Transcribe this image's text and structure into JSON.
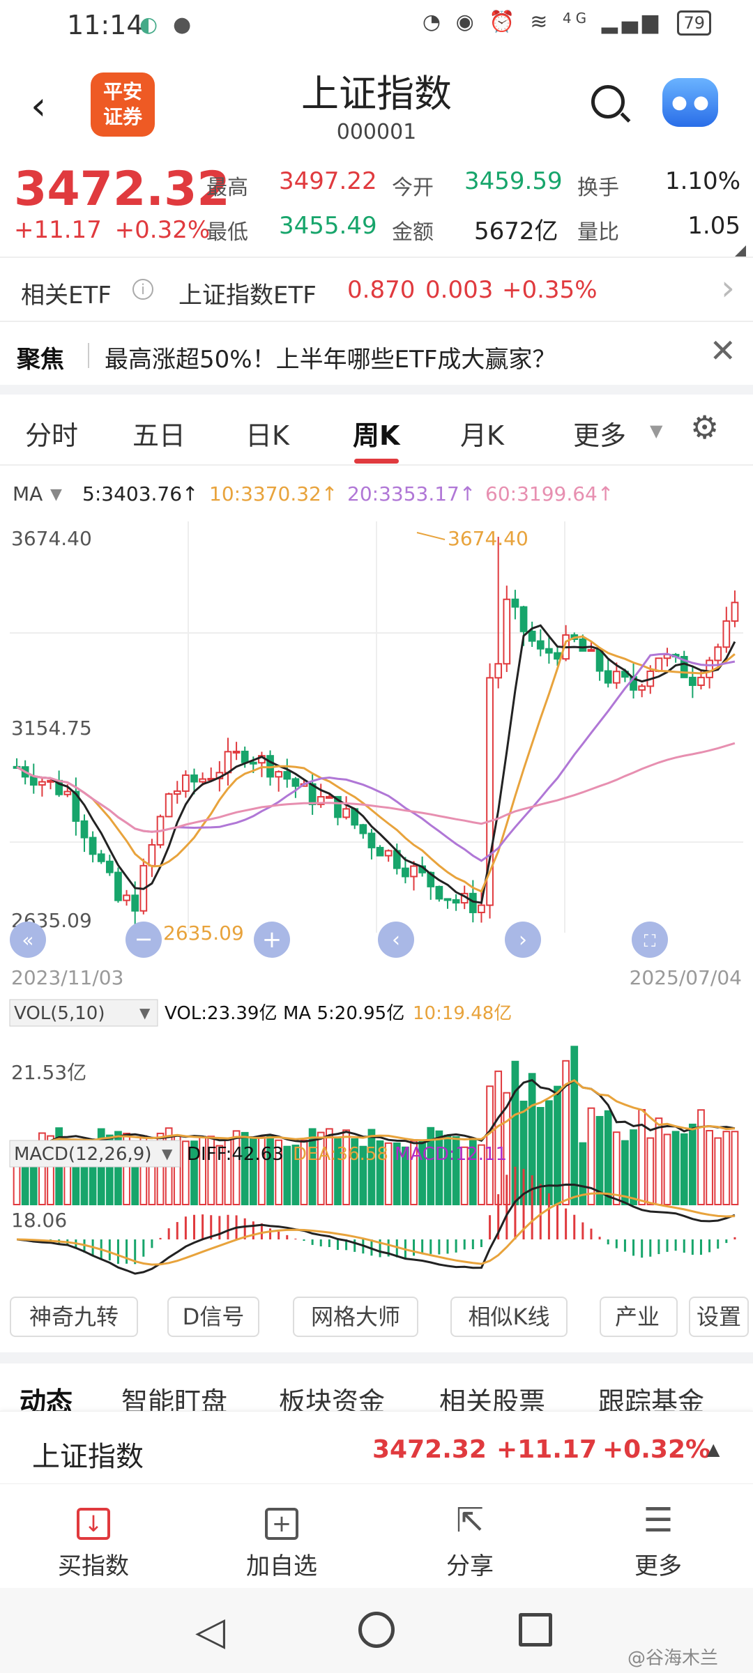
{
  "status_bar": {
    "time": "11:14",
    "battery": "79",
    "network": "4G"
  },
  "header": {
    "logo_text": "平安证券",
    "title": "上证指数",
    "code": "000001"
  },
  "quote": {
    "price": "3472.32",
    "change": "+11.17",
    "change_pct": "+0.32%",
    "high_label": "最高",
    "high": "3497.22",
    "low_label": "最低",
    "low": "3455.49",
    "open_label": "今开",
    "open": "3459.59",
    "amount_label": "金额",
    "amount": "5672亿",
    "turnover_label": "换手",
    "turnover": "1.10%",
    "volume_ratio_label": "量比",
    "volume_ratio": "1.05"
  },
  "etf": {
    "label": "相关ETF",
    "name": "上证指数ETF",
    "price": "0.870",
    "change": "0.003",
    "change_pct": "+0.35%"
  },
  "focus": {
    "label": "聚焦",
    "text": "最高涨超50%！上半年哪些ETF成大赢家？"
  },
  "tabs": [
    "分时",
    "五日",
    "日K",
    "周K",
    "月K",
    "更多"
  ],
  "active_tab": "周K",
  "ma_legend": {
    "label": "MA",
    "ma5": "5:3403.76↑",
    "ma10": "10:3370.32↑",
    "ma20": "20:3353.17↑",
    "ma60": "60:3199.64↑"
  },
  "price_axis": {
    "top": "3674.40",
    "mid": "3154.75",
    "bottom": "2635.09",
    "high_marker": "3674.40",
    "low_marker": "2635.09"
  },
  "date_range": {
    "start": "2023/11/03",
    "end": "2025/07/04"
  },
  "vol_legend": {
    "label": "VOL(5,10)",
    "vol": "VOL:23.39亿",
    "ma5": "MA 5:20.95亿",
    "ma10": "10:19.48亿",
    "axis": "21.53亿"
  },
  "macd_legend": {
    "label": "MACD(12,26,9)",
    "diff": "DIFF:42.63",
    "dea": "DEA:36.58",
    "macd": "MACD:12.11",
    "axis": "18.06"
  },
  "tools": [
    "神奇九转",
    "D信号",
    "网格大师",
    "相似K线",
    "产业链",
    "设置"
  ],
  "subtabs": [
    "动态",
    "智能盯盘",
    "板块资金",
    "相关股票",
    "跟踪基金"
  ],
  "sticky": {
    "name": "上证指数",
    "price": "3472.32",
    "change": "+11.17",
    "change_pct": "+0.32%"
  },
  "bottom_nav": [
    {
      "icon": "download-icon",
      "label": "买指数"
    },
    {
      "icon": "plus-box-icon",
      "label": "加自选"
    },
    {
      "icon": "share-icon",
      "label": "分享"
    },
    {
      "icon": "menu-icon",
      "label": "更多"
    }
  ],
  "watermark": "@谷海木兰",
  "colors": {
    "up": "#e03a3e",
    "down": "#17a56b",
    "ma5": "#222222",
    "ma10": "#e8a33c",
    "ma20": "#b077d6",
    "ma60": "#e78fb0"
  }
}
